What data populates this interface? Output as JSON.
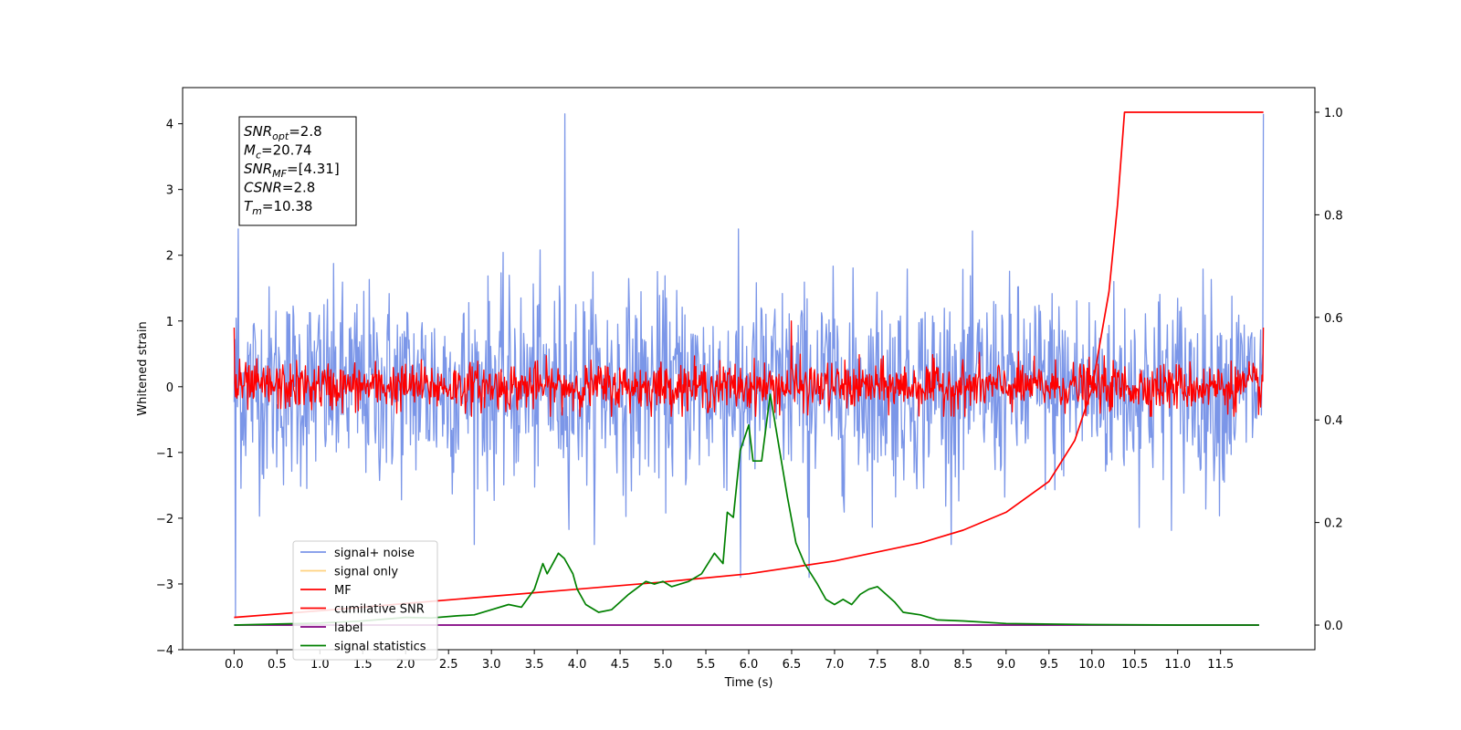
{
  "chart_data": {
    "type": "line",
    "title": "",
    "xlabel": "Time (s)",
    "ylabel": "Whitened strain",
    "xlim": [
      -0.6,
      12.6
    ],
    "ylim": [
      -4.0,
      4.55
    ],
    "y2lim": [
      -0.048,
      1.048
    ],
    "x_ticks": [
      "0.0",
      "0.5",
      "1.0",
      "1.5",
      "2.0",
      "2.5",
      "3.0",
      "3.5",
      "4.0",
      "4.5",
      "5.0",
      "5.5",
      "6.0",
      "6.5",
      "7.0",
      "7.5",
      "8.0",
      "8.5",
      "9.0",
      "9.5",
      "10.0",
      "10.5",
      "11.0",
      "11.5"
    ],
    "y_ticks": [
      "−4",
      "−3",
      "−2",
      "−1",
      "0",
      "1",
      "2",
      "3",
      "4"
    ],
    "y2_ticks": [
      "0.0",
      "0.2",
      "0.4",
      "0.6",
      "0.8",
      "1.0"
    ],
    "grid": false,
    "legend_position": "lower-left",
    "legend": [
      {
        "label": "signal+ noise",
        "color": "#7b96e8"
      },
      {
        "label": "signal only",
        "color": "#ffd27f"
      },
      {
        "label": "MF",
        "color": "#ff0000"
      },
      {
        "label": "cumilative SNR",
        "color": "#ff0000"
      },
      {
        "label": "label",
        "color": "#800080"
      },
      {
        "label": "signal statistics",
        "color": "#008000"
      }
    ],
    "info_box": {
      "lines": [
        {
          "sym": "SNR",
          "sub": "opt",
          "val": "=2.8"
        },
        {
          "sym": "M",
          "sub": "c",
          "val": "=20.74"
        },
        {
          "sym": "SNR",
          "sub": "MF",
          "val": "=[4.31]"
        },
        {
          "sym": "CSNR",
          "sub": "",
          "val": "=2.8"
        },
        {
          "sym": "T",
          "sub": "m",
          "val": "=10.38"
        }
      ]
    },
    "series": [
      {
        "name": "signal+ noise",
        "axis": "left",
        "color": "#7b96e8",
        "pattern": "noise",
        "x_range": [
          0.0,
          12.0
        ],
        "amplitude_std": 0.75,
        "spikes": [
          [
            0.05,
            2.4
          ],
          [
            0.02,
            -3.5
          ],
          [
            3.86,
            4.15
          ],
          [
            12.0,
            4.15
          ],
          [
            6.7,
            -2.9
          ],
          [
            5.9,
            -2.9
          ]
        ]
      },
      {
        "name": "MF",
        "axis": "left",
        "color": "#ff0000",
        "pattern": "noise",
        "x_range": [
          0.0,
          12.0
        ],
        "amplitude_std": 0.18,
        "spikes": [
          [
            0.0,
            0.9
          ],
          [
            6.5,
            1.0
          ],
          [
            12.0,
            0.9
          ]
        ]
      },
      {
        "name": "cumilative SNR",
        "axis": "right",
        "color": "#ff0000",
        "x": [
          0.0,
          1.0,
          2.0,
          3.0,
          4.0,
          5.0,
          6.0,
          7.0,
          8.0,
          8.5,
          9.0,
          9.5,
          9.8,
          10.0,
          10.2,
          10.3,
          10.38,
          12.0
        ],
        "y": [
          0.015,
          0.028,
          0.042,
          0.056,
          0.07,
          0.084,
          0.1,
          0.125,
          0.16,
          0.185,
          0.22,
          0.28,
          0.36,
          0.46,
          0.65,
          0.82,
          1.0,
          1.0
        ]
      },
      {
        "name": "label",
        "axis": "right",
        "color": "#800080",
        "x": [
          0.0,
          11.95
        ],
        "y": [
          0.0,
          0.0
        ]
      },
      {
        "name": "signal statistics",
        "axis": "right",
        "color": "#008000",
        "x": [
          0.0,
          0.5,
          1.0,
          1.5,
          2.0,
          2.3,
          2.6,
          2.8,
          3.0,
          3.2,
          3.35,
          3.5,
          3.6,
          3.65,
          3.7,
          3.78,
          3.85,
          3.95,
          4.0,
          4.1,
          4.25,
          4.4,
          4.6,
          4.8,
          4.9,
          5.0,
          5.1,
          5.3,
          5.45,
          5.6,
          5.7,
          5.75,
          5.82,
          5.9,
          6.0,
          6.05,
          6.15,
          6.25,
          6.35,
          6.45,
          6.55,
          6.65,
          6.8,
          6.9,
          7.0,
          7.1,
          7.2,
          7.3,
          7.4,
          7.5,
          7.6,
          7.7,
          7.8,
          8.0,
          8.2,
          8.5,
          9.0,
          10.0,
          11.0,
          11.95
        ],
        "y": [
          0.0,
          0.002,
          0.004,
          0.008,
          0.015,
          0.014,
          0.018,
          0.02,
          0.03,
          0.04,
          0.035,
          0.07,
          0.12,
          0.1,
          0.115,
          0.14,
          0.13,
          0.1,
          0.07,
          0.04,
          0.025,
          0.03,
          0.06,
          0.085,
          0.08,
          0.085,
          0.075,
          0.085,
          0.1,
          0.14,
          0.12,
          0.22,
          0.21,
          0.34,
          0.39,
          0.32,
          0.32,
          0.45,
          0.35,
          0.25,
          0.16,
          0.12,
          0.08,
          0.05,
          0.04,
          0.05,
          0.04,
          0.06,
          0.07,
          0.075,
          0.06,
          0.045,
          0.025,
          0.02,
          0.01,
          0.008,
          0.003,
          0.001,
          0.0,
          0.0
        ]
      }
    ]
  }
}
